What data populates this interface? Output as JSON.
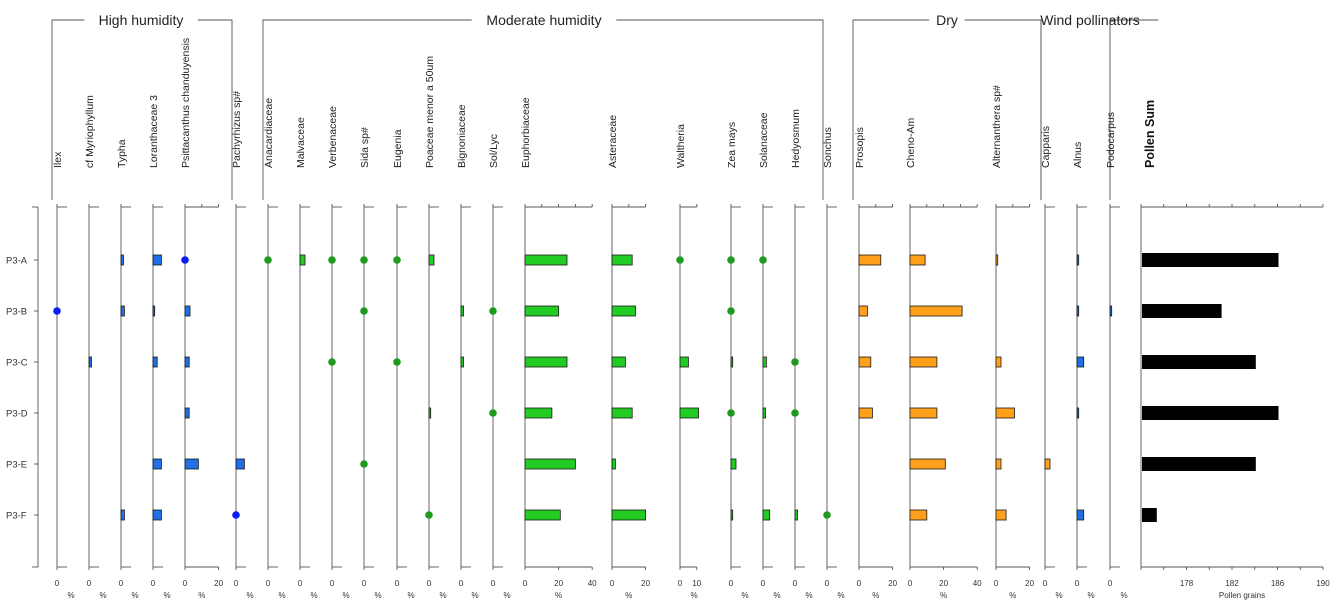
{
  "chart_data": {
    "type": "bar",
    "samples": [
      "P3-A",
      "P3-B",
      "P3-C",
      "P3-D",
      "P3-E",
      "P3-F"
    ],
    "groups": [
      {
        "label": "High humidity",
        "color": "#1f6fe5"
      },
      {
        "label": "Moderate humidity",
        "color": "#22cc22"
      },
      {
        "label": "Dry",
        "color": "#ff9f1a"
      },
      {
        "label": "Wind pollinators",
        "color": "#1f6fe5"
      }
    ],
    "point_colors": {
      "High humidity": "#0a1cf5",
      "Moderate humidity": "#1f9a1f"
    },
    "taxa": [
      {
        "name": "Ilex",
        "group": "High humidity",
        "values": [
          0,
          0.5,
          0,
          0,
          0,
          0
        ]
      },
      {
        "name": "cf Myriophyllum",
        "group": "High humidity",
        "values": [
          0,
          0,
          1.5,
          0,
          0,
          0
        ]
      },
      {
        "name": "Typha",
        "group": "High humidity",
        "values": [
          1.5,
          2,
          0,
          0,
          0,
          2
        ]
      },
      {
        "name": "Loranthaceae 3",
        "group": "High humidity",
        "values": [
          5,
          1,
          2.5,
          0,
          5,
          5
        ]
      },
      {
        "name": "Psittacanthus chanduyensis",
        "group": "High humidity",
        "values": [
          0.5,
          3,
          2.5,
          2.5,
          8,
          0
        ]
      },
      {
        "name": "Pachyrhizus sp#",
        "group": "High humidity",
        "values": [
          0,
          0,
          0,
          0,
          5,
          0.5
        ]
      },
      {
        "name": "Anacardiaceae",
        "group": "Moderate humidity",
        "values": [
          0.3,
          0,
          0,
          0,
          0,
          0
        ]
      },
      {
        "name": "Malvaceae",
        "group": "Moderate humidity",
        "values": [
          3,
          0,
          0,
          0,
          0,
          0
        ]
      },
      {
        "name": "Verbenaceae",
        "group": "Moderate humidity",
        "values": [
          0.2,
          0,
          0.3,
          0,
          0,
          0
        ]
      },
      {
        "name": "Sida sp#",
        "group": "Moderate humidity",
        "values": [
          0.5,
          0.5,
          0,
          0,
          0.3,
          0
        ]
      },
      {
        "name": "Eugenia",
        "group": "Moderate humidity",
        "values": [
          0.3,
          0,
          0.3,
          0,
          0,
          0
        ]
      },
      {
        "name": "Poaceae menor a 50um",
        "group": "Moderate humidity",
        "values": [
          3,
          0,
          0,
          1,
          0,
          0.5
        ]
      },
      {
        "name": "Bignoniaceae",
        "group": "Moderate humidity",
        "values": [
          0,
          1.5,
          1.5,
          0,
          0,
          0
        ]
      },
      {
        "name": "Sol/Lyc",
        "group": "Moderate humidity",
        "values": [
          0,
          0.3,
          0,
          0.5,
          0,
          0
        ]
      },
      {
        "name": "Euphorbiaceae",
        "group": "Moderate humidity",
        "values": [
          25,
          20,
          25,
          16,
          30,
          21
        ]
      },
      {
        "name": "Asteraceae",
        "group": "Moderate humidity",
        "values": [
          12,
          14,
          8,
          12,
          2,
          20
        ]
      },
      {
        "name": "Waltheria",
        "group": "Moderate humidity",
        "values": [
          0.3,
          0,
          5,
          11,
          0,
          0
        ]
      },
      {
        "name": "Zea mays",
        "group": "Moderate humidity",
        "values": [
          0.3,
          0.5,
          1,
          0.3,
          3,
          1
        ]
      },
      {
        "name": "Solanaceae",
        "group": "Moderate humidity",
        "values": [
          0.5,
          0,
          2,
          1.5,
          0,
          4
        ]
      },
      {
        "name": "Hedyosmum",
        "group": "Moderate humidity",
        "values": [
          0,
          0,
          0.5,
          0.5,
          0,
          1.5
        ]
      },
      {
        "name": "Sonchus",
        "group": "Moderate humidity",
        "values": [
          0,
          0,
          0,
          0,
          0,
          0.3
        ]
      },
      {
        "name": "Prosopis",
        "group": "Dry",
        "values": [
          13,
          5,
          7,
          8,
          0,
          0
        ]
      },
      {
        "name": "Cheno-Am",
        "group": "Dry",
        "values": [
          9,
          31,
          16,
          16,
          21,
          10
        ]
      },
      {
        "name": "Alternanthera sp#",
        "group": "Dry",
        "values": [
          1,
          0,
          3,
          11,
          3,
          6
        ]
      },
      {
        "name": "Capparis",
        "group": "Dry",
        "values": [
          0,
          0,
          0,
          0,
          3,
          0
        ]
      },
      {
        "name": "Alnus",
        "group": "Wind pollinators",
        "values": [
          1,
          1,
          4,
          1,
          0,
          4
        ]
      },
      {
        "name": "Podocarpus",
        "group": "Wind pollinators",
        "values": [
          0,
          1,
          0,
          0,
          0,
          0
        ]
      }
    ],
    "pollen_sum": {
      "title": "Pollen Sum",
      "xlabel": "Pollen grains",
      "ticks": [
        178,
        182,
        186,
        190
      ],
      "values": [
        186,
        181,
        184,
        186,
        184,
        175.3
      ]
    },
    "unit_label": "%"
  }
}
